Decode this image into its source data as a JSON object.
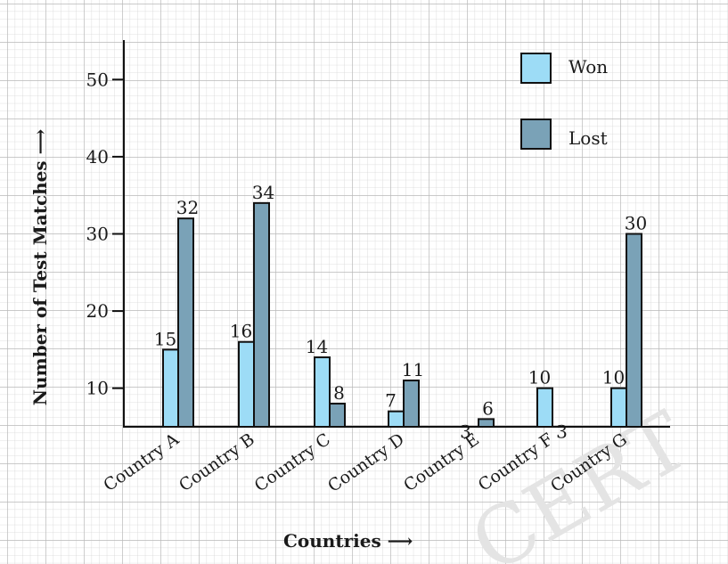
{
  "chart_data": {
    "type": "bar",
    "categories": [
      "Country A",
      "Country B",
      "Country C",
      "Country D",
      "Country E",
      "Country F",
      "Country G"
    ],
    "series": [
      {
        "name": "Won",
        "values": [
          15,
          16,
          14,
          7,
          3,
          10,
          10
        ],
        "color": "#9ddcf6"
      },
      {
        "name": "Lost",
        "values": [
          32,
          34,
          8,
          11,
          6,
          3,
          30
        ],
        "color": "#7aa2b7"
      }
    ],
    "xlabel": "Countries ⟶",
    "ylabel": "Number of Test Matches ⟶",
    "yticks": [
      10,
      20,
      30,
      40,
      50
    ],
    "ylim": [
      5,
      55
    ],
    "legend_position": "top-right",
    "grid": true
  }
}
